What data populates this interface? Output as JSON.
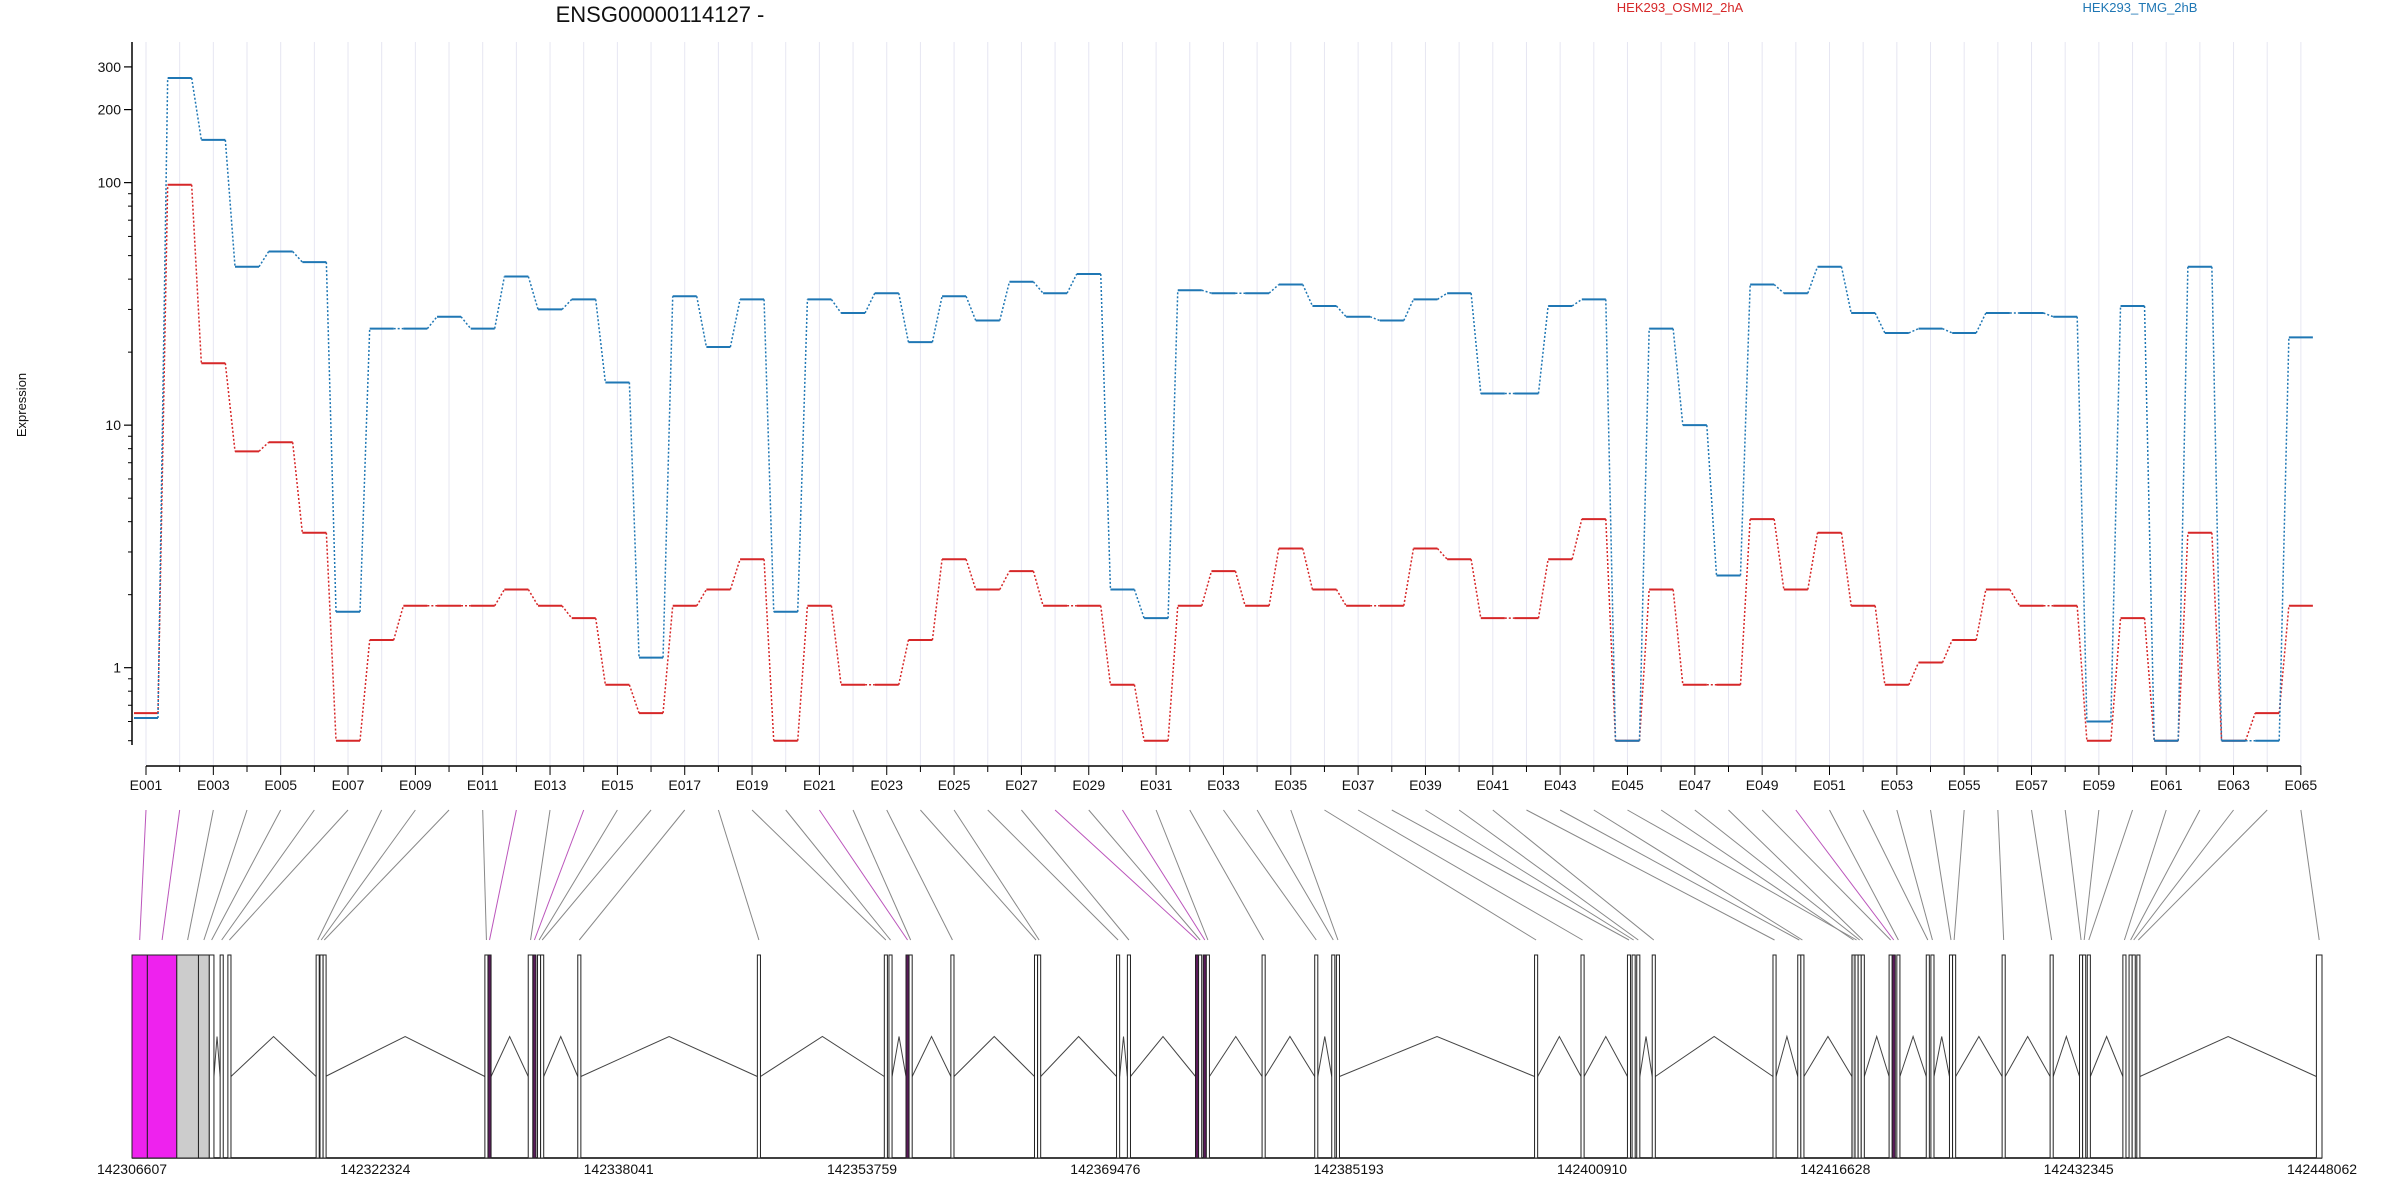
{
  "title": "ENSG00000114127 -",
  "ylabel": "Expression",
  "legend": [
    {
      "name": "HEK293_OSMI2_2hA",
      "color": "#d62728"
    },
    {
      "name": "HEK293_TMG_2hB",
      "color": "#1f77b4"
    }
  ],
  "colors": {
    "highlight": "#ee22ee",
    "highlight_dark": "#5a1a5a",
    "grey_exon": "#cccccc",
    "connector": "#888888",
    "connector_highlight": "#bb55bb",
    "grid": "#e6e6f2"
  },
  "chart_data": {
    "type": "line",
    "yscale": "log",
    "ylim": [
      0.48,
      380
    ],
    "yticks": [
      1,
      10,
      100,
      200,
      300
    ],
    "x": [
      "E001",
      "E002",
      "E003",
      "E004",
      "E005",
      "E006",
      "E007",
      "E008",
      "E009",
      "E010",
      "E011",
      "E012",
      "E013",
      "E014",
      "E015",
      "E016",
      "E017",
      "E018",
      "E019",
      "E020",
      "E021",
      "E022",
      "E023",
      "E024",
      "E025",
      "E026",
      "E027",
      "E028",
      "E029",
      "E030",
      "E031",
      "E032",
      "E033",
      "E034",
      "E035",
      "E036",
      "E037",
      "E038",
      "E039",
      "E040",
      "E041",
      "E042",
      "E043",
      "E044",
      "E045",
      "E046",
      "E047",
      "E048",
      "E049",
      "E050",
      "E051",
      "E052",
      "E053",
      "E054",
      "E055",
      "E056",
      "E057",
      "E058",
      "E059",
      "E060",
      "E061",
      "E062",
      "E063",
      "E064",
      "E065"
    ],
    "xtick_labels": [
      "E001",
      "E003",
      "E005",
      "E007",
      "E009",
      "E011",
      "E013",
      "E015",
      "E017",
      "E019",
      "E021",
      "E023",
      "E025",
      "E027",
      "E029",
      "E031",
      "E033",
      "E035",
      "E037",
      "E039",
      "E041",
      "E043",
      "E045",
      "E047",
      "E049",
      "E051",
      "E053",
      "E055",
      "E057",
      "E059",
      "E061",
      "E063",
      "E065"
    ],
    "series": [
      {
        "name": "HEK293_OSMI2_2hA",
        "color": "#d62728",
        "values": [
          0.65,
          98,
          18,
          7.8,
          8.5,
          3.6,
          0.5,
          1.3,
          1.8,
          1.8,
          1.8,
          2.1,
          1.8,
          1.6,
          0.85,
          0.65,
          1.8,
          2.1,
          2.8,
          0.5,
          1.8,
          0.85,
          0.85,
          1.3,
          2.8,
          2.1,
          2.5,
          1.8,
          1.8,
          0.85,
          0.5,
          1.8,
          2.5,
          1.8,
          3.1,
          2.1,
          1.8,
          1.8,
          3.1,
          2.8,
          1.6,
          1.6,
          2.8,
          4.1,
          0.5,
          2.1,
          0.85,
          0.85,
          4.1,
          2.1,
          3.6,
          1.8,
          0.85,
          1.05,
          1.3,
          2.1,
          1.8,
          1.8,
          0.5,
          1.6,
          0.5,
          3.6,
          0.5,
          0.65,
          1.8
        ]
      },
      {
        "name": "HEK293_TMG_2hB",
        "color": "#1f77b4",
        "values": [
          0.62,
          270,
          150,
          45,
          52,
          47,
          1.7,
          25,
          25,
          28,
          25,
          41,
          30,
          33,
          15,
          1.1,
          34,
          21,
          33,
          1.7,
          33,
          29,
          35,
          22,
          34,
          27,
          39,
          35,
          42,
          2.1,
          1.6,
          36,
          35,
          35,
          38,
          31,
          28,
          27,
          33,
          35,
          13.5,
          13.5,
          31,
          33,
          0.5,
          25,
          10,
          2.4,
          38,
          35,
          45,
          29,
          24,
          25,
          24,
          29,
          29,
          28,
          0.6,
          31,
          0.5,
          45,
          0.5,
          0.5,
          23
        ]
      }
    ]
  },
  "gene_model": {
    "coord_labels": [
      "142306607",
      "142322324",
      "142338041",
      "142353759",
      "142369476",
      "142385193",
      "142400910",
      "142416628",
      "142432345",
      "142448062"
    ],
    "start": 142306607,
    "end": 142448062,
    "exons": [
      {
        "id": "E001",
        "start": 142306607,
        "end": 142307600,
        "color": "#ee22ee"
      },
      {
        "id": "E002",
        "start": 142307600,
        "end": 142309500,
        "color": "#ee22ee"
      },
      {
        "id": "E003",
        "start": 142309500,
        "end": 142310900,
        "color": "#cccccc"
      },
      {
        "id": "E004",
        "start": 142310900,
        "end": 142311600,
        "color": "#cccccc"
      },
      {
        "id": "E005",
        "start": 142311600,
        "end": 142311900,
        "color": "#ffffff"
      },
      {
        "id": "E006",
        "start": 142312300,
        "end": 142312500,
        "color": "#ffffff"
      },
      {
        "id": "E007",
        "start": 142312800,
        "end": 142313000,
        "color": "#ffffff"
      },
      {
        "id": "E008",
        "start": 142318500,
        "end": 142318700,
        "color": "#ffffff"
      },
      {
        "id": "E009",
        "start": 142318750,
        "end": 142318900,
        "color": "#ffffff"
      },
      {
        "id": "E010",
        "start": 142318950,
        "end": 142319100,
        "color": "#ffffff"
      },
      {
        "id": "E011",
        "start": 142329400,
        "end": 142329600,
        "color": "#ffffff"
      },
      {
        "id": "E012",
        "start": 142329600,
        "end": 142329800,
        "color": "#ee22ee"
      },
      {
        "id": "E013",
        "start": 142332200,
        "end": 142332500,
        "color": "#ffffff"
      },
      {
        "id": "E014",
        "start": 142332500,
        "end": 142332700,
        "color": "#ee22ee"
      },
      {
        "id": "E015",
        "start": 142332800,
        "end": 142333000,
        "color": "#ffffff"
      },
      {
        "id": "E016",
        "start": 142333000,
        "end": 142333200,
        "color": "#ffffff"
      },
      {
        "id": "E017",
        "start": 142335400,
        "end": 142335600,
        "color": "#ffffff"
      },
      {
        "id": "E018",
        "start": 142347000,
        "end": 142347200,
        "color": "#ffffff"
      },
      {
        "id": "E019",
        "start": 142355200,
        "end": 142355400,
        "color": "#ffffff"
      },
      {
        "id": "E020",
        "start": 142355500,
        "end": 142355700,
        "color": "#ffffff"
      },
      {
        "id": "E021",
        "start": 142356600,
        "end": 142356800,
        "color": "#ee22ee"
      },
      {
        "id": "E022",
        "start": 142356800,
        "end": 142357000,
        "color": "#ffffff"
      },
      {
        "id": "E023",
        "start": 142359500,
        "end": 142359700,
        "color": "#ffffff"
      },
      {
        "id": "E024",
        "start": 142364900,
        "end": 142365100,
        "color": "#ffffff"
      },
      {
        "id": "E025",
        "start": 142365100,
        "end": 142365300,
        "color": "#ffffff"
      },
      {
        "id": "E026",
        "start": 142370200,
        "end": 142370400,
        "color": "#ffffff"
      },
      {
        "id": "E027",
        "start": 142370900,
        "end": 142371100,
        "color": "#ffffff"
      },
      {
        "id": "E028",
        "start": 142375300,
        "end": 142375500,
        "color": "#ee22ee"
      },
      {
        "id": "E029",
        "start": 142375500,
        "end": 142375700,
        "color": "#ffffff"
      },
      {
        "id": "E030",
        "start": 142375800,
        "end": 142376000,
        "color": "#ee22ee"
      },
      {
        "id": "E031",
        "start": 142376000,
        "end": 142376200,
        "color": "#ffffff"
      },
      {
        "id": "E032",
        "start": 142379600,
        "end": 142379800,
        "color": "#ffffff"
      },
      {
        "id": "E033",
        "start": 142383000,
        "end": 142383200,
        "color": "#ffffff"
      },
      {
        "id": "E034",
        "start": 142384100,
        "end": 142384300,
        "color": "#ffffff"
      },
      {
        "id": "E035",
        "start": 142384400,
        "end": 142384600,
        "color": "#ffffff"
      },
      {
        "id": "E036",
        "start": 142397200,
        "end": 142397400,
        "color": "#ffffff"
      },
      {
        "id": "E037",
        "start": 142400200,
        "end": 142400400,
        "color": "#ffffff"
      },
      {
        "id": "E038",
        "start": 142403200,
        "end": 142403400,
        "color": "#ffffff"
      },
      {
        "id": "E039",
        "start": 142403500,
        "end": 142403700,
        "color": "#ffffff"
      },
      {
        "id": "E040",
        "start": 142403800,
        "end": 142404000,
        "color": "#ffffff"
      },
      {
        "id": "E041",
        "start": 142404800,
        "end": 142405000,
        "color": "#ffffff"
      },
      {
        "id": "E042",
        "start": 142412600,
        "end": 142412800,
        "color": "#ffffff"
      },
      {
        "id": "E043",
        "start": 142414200,
        "end": 142414400,
        "color": "#ffffff"
      },
      {
        "id": "E044",
        "start": 142414400,
        "end": 142414600,
        "color": "#ffffff"
      },
      {
        "id": "E045",
        "start": 142417900,
        "end": 142418100,
        "color": "#ffffff"
      },
      {
        "id": "E046",
        "start": 142417700,
        "end": 142417900,
        "color": "#cccccc"
      },
      {
        "id": "E047",
        "start": 142418100,
        "end": 142418300,
        "color": "#ffffff"
      },
      {
        "id": "E048",
        "start": 142418300,
        "end": 142418500,
        "color": "#ffffff"
      },
      {
        "id": "E049",
        "start": 142420100,
        "end": 142420300,
        "color": "#ffffff"
      },
      {
        "id": "E050",
        "start": 142420300,
        "end": 142420500,
        "color": "#ee22ee"
      },
      {
        "id": "E051",
        "start": 142420600,
        "end": 142420800,
        "color": "#ffffff"
      },
      {
        "id": "E052",
        "start": 142422500,
        "end": 142422700,
        "color": "#ffffff"
      },
      {
        "id": "E053",
        "start": 142422800,
        "end": 142423000,
        "color": "#ffffff"
      },
      {
        "id": "E054",
        "start": 142424000,
        "end": 142424200,
        "color": "#ffffff"
      },
      {
        "id": "E055",
        "start": 142424200,
        "end": 142424400,
        "color": "#ffffff"
      },
      {
        "id": "E056",
        "start": 142427400,
        "end": 142427600,
        "color": "#ffffff"
      },
      {
        "id": "E057",
        "start": 142430500,
        "end": 142430700,
        "color": "#ffffff"
      },
      {
        "id": "E058",
        "start": 142432400,
        "end": 142432600,
        "color": "#ffffff"
      },
      {
        "id": "E059",
        "start": 142432600,
        "end": 142432800,
        "color": "#ffffff"
      },
      {
        "id": "E060",
        "start": 142432900,
        "end": 142433100,
        "color": "#ffffff"
      },
      {
        "id": "E061",
        "start": 142435200,
        "end": 142435400,
        "color": "#ffffff"
      },
      {
        "id": "E062",
        "start": 142435600,
        "end": 142435800,
        "color": "#ffffff"
      },
      {
        "id": "E063",
        "start": 142435800,
        "end": 142436000,
        "color": "#ffffff"
      },
      {
        "id": "E064",
        "start": 142436100,
        "end": 142436300,
        "color": "#ffffff"
      },
      {
        "id": "E065",
        "start": 142447700,
        "end": 142448062,
        "color": "#ffffff"
      }
    ]
  }
}
